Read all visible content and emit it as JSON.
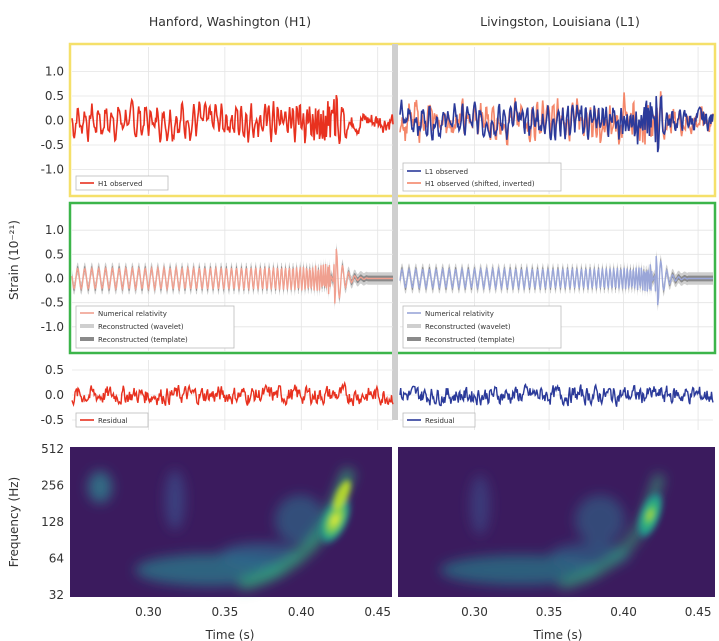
{
  "titles": {
    "left": "Hanford, Washington (H1)",
    "right": "Livingston, Louisiana (L1)"
  },
  "axis_labels": {
    "strain": "Strain (10⁻²¹)",
    "frequency": "Frequency (Hz)",
    "time": "Time (s)"
  },
  "colors": {
    "h1": "#e8311f",
    "l1": "#2b3a9a",
    "h1_shifted": "#f4876a",
    "numerical_h1": "#f0a090",
    "numerical_l1": "#9aa6d8",
    "wavelet": "#c8c8c8",
    "template": "#8a8a8a",
    "frame_top": "#f5e06a",
    "frame_mid": "#3cb54a",
    "spec_bg": "#3b1b5e"
  },
  "chart_data": [
    {
      "type": "line",
      "panel": "top",
      "x_range": [
        0.25,
        0.46
      ],
      "ylim": [
        -1.5,
        1.5
      ],
      "yticks": [
        "1.0",
        "0.5",
        "0.0",
        "-0.5",
        "-1.0"
      ],
      "left_legend": [
        "H1 observed"
      ],
      "right_legend": [
        "L1 observed",
        "H1 observed (shifted, inverted)"
      ]
    },
    {
      "type": "line",
      "panel": "middle",
      "x_range": [
        0.25,
        0.46
      ],
      "ylim": [
        -1.5,
        1.5
      ],
      "yticks": [
        "1.0",
        "0.5",
        "0.0",
        "-0.5",
        "-1.0"
      ],
      "legend": [
        "Numerical relativity",
        "Reconstructed (wavelet)",
        "Reconstructed (template)"
      ]
    },
    {
      "type": "line",
      "panel": "residual",
      "x_range": [
        0.25,
        0.46
      ],
      "ylim": [
        -0.7,
        0.7
      ],
      "yticks": [
        "0.5",
        "0.0",
        "-0.5"
      ],
      "legend": [
        "Residual"
      ]
    },
    {
      "type": "heatmap",
      "panel": "spectrogram",
      "x_range": [
        0.25,
        0.46
      ],
      "xticks": [
        "0.30",
        "0.35",
        "0.40",
        "0.45"
      ],
      "y_log": true,
      "yticks": [
        "512",
        "256",
        "128",
        "64",
        "32"
      ]
    }
  ]
}
